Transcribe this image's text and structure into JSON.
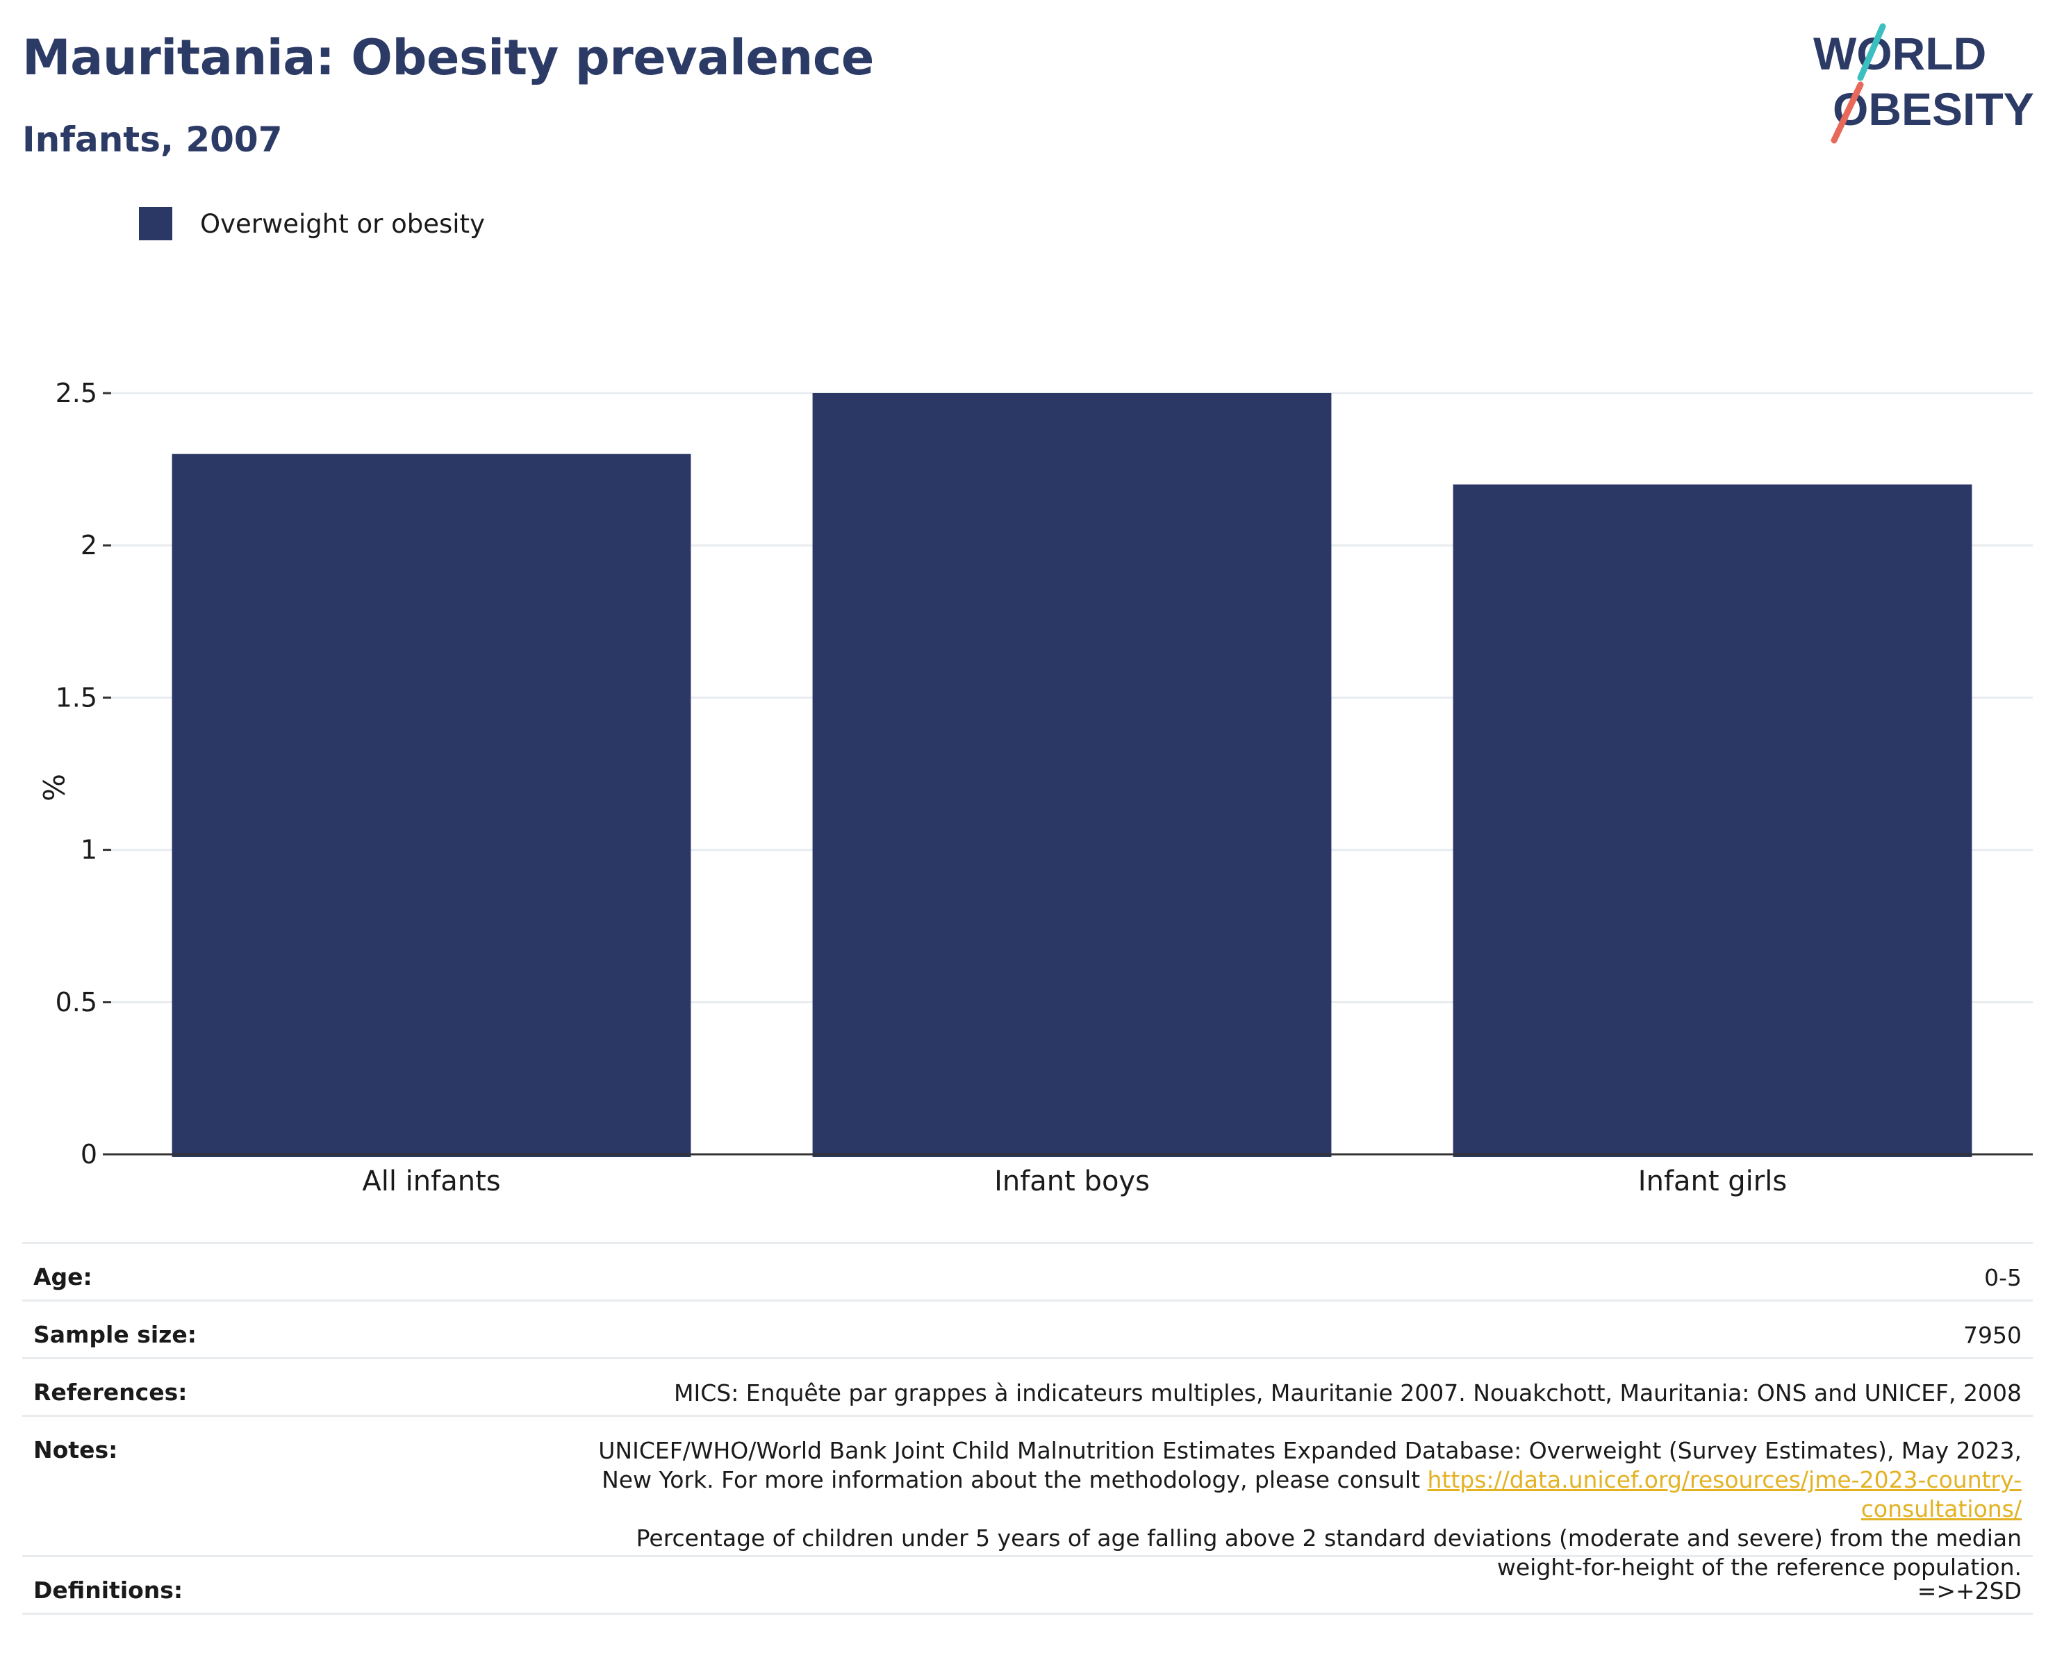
{
  "header": {
    "title": "Mauritania: Obesity prevalence",
    "subtitle": "Infants, 2007"
  },
  "logo": {
    "line1": "WORLD",
    "line2": "OBESITY",
    "colors": {
      "text": "#2c3a66",
      "slash_top": "#3bbfbf",
      "slash_bottom": "#e8685a"
    }
  },
  "legend": {
    "label": "Overweight or obesity"
  },
  "colors": {
    "bar": "#2b3764",
    "grid": "#e8ecef",
    "axis": "#333333"
  },
  "chart_data": {
    "type": "bar",
    "categories": [
      "All infants",
      "Infant boys",
      "Infant girls"
    ],
    "series": [
      {
        "name": "Overweight or obesity",
        "values": [
          2.3,
          2.5,
          2.2
        ]
      }
    ],
    "ylabel": "%",
    "xlabel": "",
    "ylim": [
      0,
      2.5
    ],
    "yticks": [
      0,
      0.5,
      1,
      1.5,
      2,
      2.5
    ],
    "ytick_labels": [
      "0",
      "0.5",
      "1",
      "1.5",
      "2",
      "2.5"
    ],
    "grid": true,
    "legend_position": "top-left"
  },
  "info": {
    "age": {
      "label": "Age:",
      "value": "0-5"
    },
    "sample": {
      "label": "Sample size:",
      "value": "7950"
    },
    "references": {
      "label": "References:",
      "value": "MICS: Enquête par grappes à indicateurs multiples, Mauritanie 2007. Nouakchott, Mauritania: ONS and UNICEF, 2008"
    },
    "notes": {
      "label": "Notes:",
      "text1": "UNICEF/WHO/World Bank Joint Child Malnutrition Estimates Expanded Database: Overweight (Survey Estimates), May 2023, New York. For more information about the methodology, please consult ",
      "link": "https://data.unicef.org/resources/jme-2023-country-consultations/",
      "text2": "Percentage of children under 5 years of age falling above 2 standard deviations (moderate and severe) from the median weight-for-height of the reference population."
    },
    "definitions": {
      "label": "Definitions:",
      "value": "=>+2SD"
    }
  }
}
